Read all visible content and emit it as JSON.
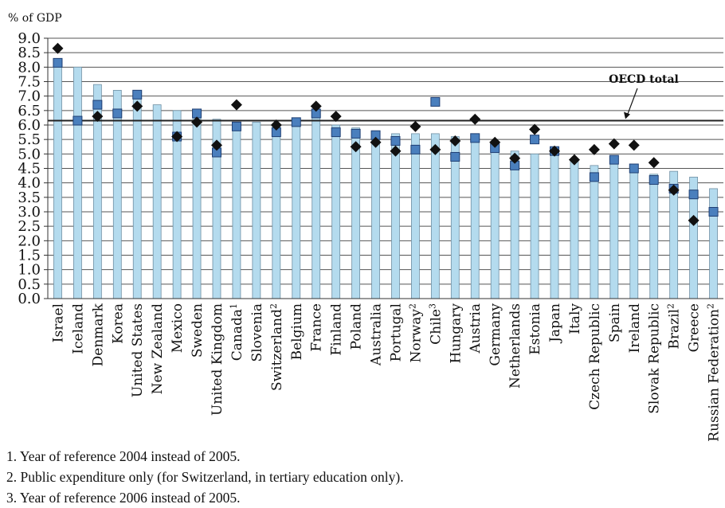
{
  "chart_data": {
    "type": "bar",
    "ylabel": "% of GDP",
    "ylim": [
      0,
      9.0
    ],
    "ytick_step": 0.5,
    "grid": "horizontal",
    "categories": [
      "Israel",
      "Iceland",
      "Denmark",
      "Korea",
      "United States",
      "New Zealand",
      "Mexico",
      "Sweden",
      "United Kingdom",
      "Canada",
      "Slovenia",
      "Switzerland",
      "Belgium",
      "France",
      "Finland",
      "Poland",
      "Australia",
      "Portugal",
      "Norway",
      "Chile",
      "Hungary",
      "Austria",
      "Germany",
      "Netherlands",
      "Estonia",
      "Japan",
      "Italy",
      "Czech Republic",
      "Spain",
      "Ireland",
      "Slovak Republic",
      "Brazil",
      "Greece",
      "Russian Federation"
    ],
    "category_superscripts": [
      "",
      "",
      "",
      "",
      "",
      "",
      "",
      "",
      "",
      "1",
      "",
      "2",
      "",
      "",
      "",
      "",
      "",
      "",
      "2",
      "3",
      "",
      "",
      "",
      "",
      "",
      "",
      "",
      "",
      "",
      "",
      "",
      "2",
      "",
      "2"
    ],
    "series": [
      {
        "values": [
          8.2,
          8.0,
          7.4,
          7.2,
          7.1,
          6.7,
          6.5,
          6.4,
          6.2,
          6.1,
          6.1,
          6.0,
          6.1,
          6.5,
          6.0,
          5.9,
          5.7,
          5.7,
          5.7,
          5.7,
          5.6,
          5.5,
          5.3,
          5.1,
          5.0,
          5.2,
          4.8,
          4.6,
          4.8,
          4.5,
          4.3,
          4.4,
          4.2,
          3.8
        ]
      },
      {
        "values": [
          8.15,
          6.15,
          6.7,
          6.4,
          7.05,
          null,
          5.6,
          6.4,
          5.05,
          5.95,
          null,
          5.75,
          6.1,
          6.4,
          5.75,
          5.7,
          5.65,
          5.45,
          5.15,
          6.8,
          4.9,
          5.55,
          5.2,
          4.6,
          5.5,
          5.1,
          null,
          4.2,
          4.8,
          4.5,
          4.1,
          3.8,
          3.6,
          3.0
        ]
      },
      {
        "values": [
          8.65,
          null,
          6.3,
          null,
          6.65,
          null,
          5.6,
          6.1,
          5.3,
          6.7,
          null,
          6.0,
          null,
          6.65,
          6.3,
          5.25,
          5.4,
          5.1,
          5.95,
          5.15,
          5.45,
          6.2,
          5.4,
          4.85,
          5.85,
          5.1,
          4.8,
          5.15,
          5.35,
          5.3,
          4.7,
          3.75,
          2.7,
          null
        ]
      }
    ],
    "reference_line": {
      "value": 6.15,
      "label": "OECD total"
    }
  },
  "footnotes": [
    "1. Year of reference 2004 instead of 2005.",
    "2. Public expenditure only (for Switzerland, in tertiary education only).",
    "3. Year of reference 2006 instead of 2005."
  ],
  "colors": {
    "bar_fill": "#b4dbee",
    "bar_stroke": "#6f8fa3",
    "square_fill": "#4a7fbd",
    "square_stroke": "#1f3f73",
    "diamond": "#111111",
    "grid": "#555555",
    "oecd_line": "#222222"
  }
}
